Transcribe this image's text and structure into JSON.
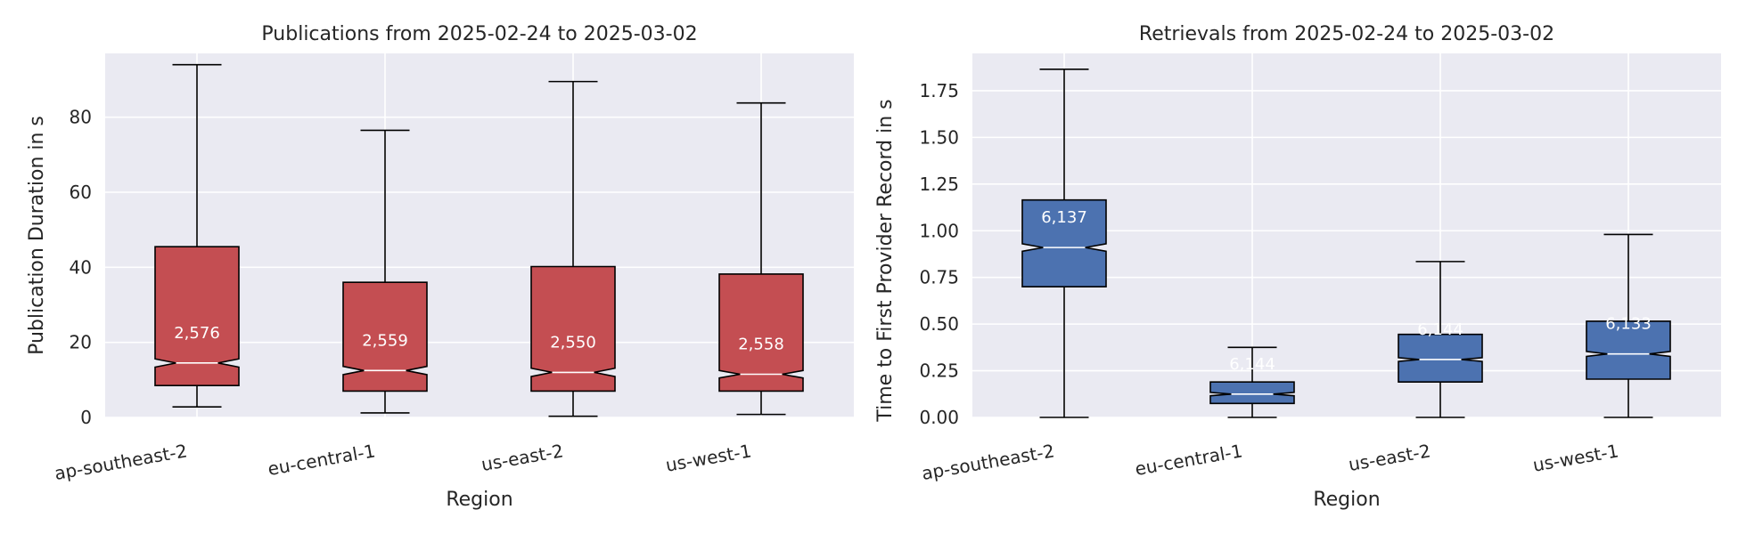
{
  "chart_data": [
    {
      "type": "box",
      "title": "Publications from 2025-02-24 to 2025-03-02",
      "xlabel": "Region",
      "ylabel": "Publication Duration in s",
      "ylim": [
        0,
        97
      ],
      "yticks": [
        0,
        20,
        40,
        60,
        80
      ],
      "grid": true,
      "notched": true,
      "box_color": "#c44e52",
      "categories": [
        "ap-southeast-2",
        "eu-central-1",
        "us-east-2",
        "us-west-1"
      ],
      "boxes": [
        {
          "whisker_low": 2.8,
          "q1": 8.5,
          "median": 14.5,
          "q3": 45.5,
          "whisker_high": 94.0,
          "notch_low": 13.4,
          "notch_high": 15.6,
          "count": "2,576"
        },
        {
          "whisker_low": 1.2,
          "q1": 7.0,
          "median": 12.5,
          "q3": 36.0,
          "whisker_high": 76.5,
          "notch_low": 11.4,
          "notch_high": 13.6,
          "count": "2,559"
        },
        {
          "whisker_low": 0.3,
          "q1": 7.0,
          "median": 12.0,
          "q3": 40.2,
          "whisker_high": 89.5,
          "notch_low": 10.9,
          "notch_high": 13.1,
          "count": "2,550"
        },
        {
          "whisker_low": 0.8,
          "q1": 7.0,
          "median": 11.5,
          "q3": 38.2,
          "whisker_high": 83.8,
          "notch_low": 10.5,
          "notch_high": 12.5,
          "count": "2,558"
        }
      ]
    },
    {
      "type": "box",
      "title": "Retrievals from 2025-02-24 to 2025-03-02",
      "xlabel": "Region",
      "ylabel": "Time to First Provider Record in s",
      "ylim": [
        0,
        1.95
      ],
      "yticks": [
        "0.00",
        "0.25",
        "0.50",
        "0.75",
        "1.00",
        "1.25",
        "1.50",
        "1.75"
      ],
      "grid": true,
      "notched": true,
      "box_color": "#4c72b0",
      "categories": [
        "ap-southeast-2",
        "eu-central-1",
        "us-east-2",
        "us-west-1"
      ],
      "boxes": [
        {
          "whisker_low": 0.0,
          "q1": 0.7,
          "median": 0.91,
          "q3": 1.165,
          "whisker_high": 1.865,
          "notch_low": 0.89,
          "notch_high": 0.93,
          "count": "6,137"
        },
        {
          "whisker_low": 0.0,
          "q1": 0.075,
          "median": 0.125,
          "q3": 0.19,
          "whisker_high": 0.375,
          "notch_low": 0.116,
          "notch_high": 0.134,
          "count": "6,144"
        },
        {
          "whisker_low": 0.0,
          "q1": 0.19,
          "median": 0.31,
          "q3": 0.445,
          "whisker_high": 0.835,
          "notch_low": 0.3,
          "notch_high": 0.32,
          "count": "6,144"
        },
        {
          "whisker_low": 0.0,
          "q1": 0.205,
          "median": 0.34,
          "q3": 0.515,
          "whisker_high": 0.98,
          "notch_low": 0.327,
          "notch_high": 0.353,
          "count": "6,133"
        }
      ]
    }
  ]
}
